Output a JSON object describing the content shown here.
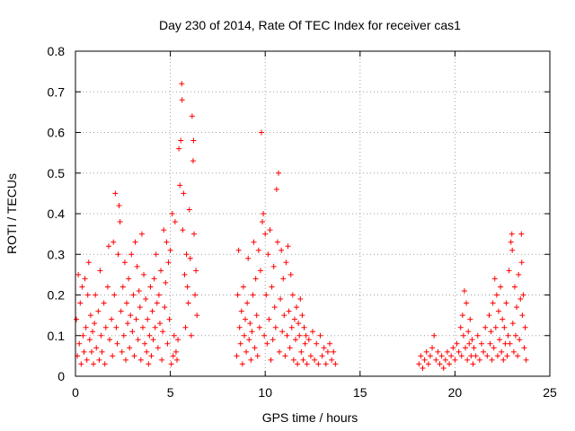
{
  "chart_data": {
    "type": "scatter",
    "title": "Day 230 of 2014, Rate Of TEC Index for receiver cas1",
    "xlabel": "GPS time / hours",
    "ylabel": "ROTI / TECUs",
    "xlim": [
      0,
      25
    ],
    "ylim": [
      0,
      0.8
    ],
    "xticks": [
      "0",
      "5",
      "10",
      "15",
      "20",
      "25"
    ],
    "yticks": [
      "0",
      "0.1",
      "0.2",
      "0.3",
      "0.4",
      "0.5",
      "0.6",
      "0.7",
      "0.8"
    ],
    "grid": true,
    "marker": "+",
    "color": "#ff0000",
    "series": [
      {
        "name": "ROTI",
        "points": [
          [
            0.05,
            0.14
          ],
          [
            0.1,
            0.05
          ],
          [
            0.15,
            0.25
          ],
          [
            0.2,
            0.08
          ],
          [
            0.25,
            0.18
          ],
          [
            0.3,
            0.03
          ],
          [
            0.35,
            0.22
          ],
          [
            0.4,
            0.1
          ],
          [
            0.45,
            0.06
          ],
          [
            0.5,
            0.24
          ],
          [
            0.55,
            0.12
          ],
          [
            0.6,
            0.04
          ],
          [
            0.65,
            0.2
          ],
          [
            0.7,
            0.28
          ],
          [
            0.75,
            0.09
          ],
          [
            0.8,
            0.15
          ],
          [
            0.85,
            0.06
          ],
          [
            0.9,
            0.11
          ],
          [
            0.95,
            0.03
          ],
          [
            1.0,
            0.13
          ],
          [
            1.05,
            0.2
          ],
          [
            1.1,
            0.07
          ],
          [
            1.2,
            0.16
          ],
          [
            1.25,
            0.04
          ],
          [
            1.3,
            0.26
          ],
          [
            1.35,
            0.1
          ],
          [
            1.4,
            0.06
          ],
          [
            1.5,
            0.18
          ],
          [
            1.55,
            0.03
          ],
          [
            1.6,
            0.12
          ],
          [
            1.7,
            0.22
          ],
          [
            1.75,
            0.32
          ],
          [
            1.8,
            0.09
          ],
          [
            1.9,
            0.14
          ],
          [
            1.95,
            0.05
          ],
          [
            2.0,
            0.33
          ],
          [
            2.05,
            0.2
          ],
          [
            2.1,
            0.45
          ],
          [
            2.15,
            0.12
          ],
          [
            2.2,
            0.08
          ],
          [
            2.25,
            0.3
          ],
          [
            2.3,
            0.42
          ],
          [
            2.35,
            0.38
          ],
          [
            2.4,
            0.16
          ],
          [
            2.45,
            0.06
          ],
          [
            2.5,
            0.22
          ],
          [
            2.55,
            0.1
          ],
          [
            2.6,
            0.28
          ],
          [
            2.65,
            0.04
          ],
          [
            2.7,
            0.18
          ],
          [
            2.75,
            0.13
          ],
          [
            2.8,
            0.24
          ],
          [
            2.85,
            0.07
          ],
          [
            2.9,
            0.15
          ],
          [
            2.95,
            0.3
          ],
          [
            3.0,
            0.11
          ],
          [
            3.05,
            0.2
          ],
          [
            3.1,
            0.05
          ],
          [
            3.15,
            0.33
          ],
          [
            3.2,
            0.14
          ],
          [
            3.25,
            0.27
          ],
          [
            3.3,
            0.09
          ],
          [
            3.35,
            0.21
          ],
          [
            3.4,
            0.17
          ],
          [
            3.45,
            0.04
          ],
          [
            3.5,
            0.35
          ],
          [
            3.55,
            0.12
          ],
          [
            3.6,
            0.25
          ],
          [
            3.65,
            0.08
          ],
          [
            3.7,
            0.19
          ],
          [
            3.75,
            0.06
          ],
          [
            3.8,
            0.14
          ],
          [
            3.85,
            0.03
          ],
          [
            3.9,
            0.1
          ],
          [
            3.95,
            0.22
          ],
          [
            4.0,
            0.05
          ],
          [
            4.05,
            0.16
          ],
          [
            4.1,
            0.09
          ],
          [
            4.15,
            0.24
          ],
          [
            4.2,
            0.12
          ],
          [
            4.25,
            0.3
          ],
          [
            4.3,
            0.18
          ],
          [
            4.35,
            0.07
          ],
          [
            4.4,
            0.2
          ],
          [
            4.45,
            0.13
          ],
          [
            4.5,
            0.26
          ],
          [
            4.55,
            0.04
          ],
          [
            4.6,
            0.11
          ],
          [
            4.65,
            0.36
          ],
          [
            4.7,
            0.17
          ],
          [
            4.75,
            0.23
          ],
          [
            4.8,
            0.33
          ],
          [
            4.85,
            0.08
          ],
          [
            4.9,
            0.28
          ],
          [
            4.95,
            0.14
          ],
          [
            5.0,
            0.31
          ],
          [
            5.05,
            0.03
          ],
          [
            5.1,
            0.4
          ],
          [
            5.15,
            0.05
          ],
          [
            5.2,
            0.1
          ],
          [
            5.25,
            0.38
          ],
          [
            5.3,
            0.06
          ],
          [
            5.35,
            0.04
          ],
          [
            5.4,
            0.09
          ],
          [
            5.45,
            0.56
          ],
          [
            5.5,
            0.47
          ],
          [
            5.55,
            0.58
          ],
          [
            5.6,
            0.72
          ],
          [
            5.62,
            0.68
          ],
          [
            5.65,
            0.36
          ],
          [
            5.7,
            0.45
          ],
          [
            5.75,
            0.25
          ],
          [
            5.8,
            0.12
          ],
          [
            5.85,
            0.3
          ],
          [
            5.9,
            0.22
          ],
          [
            5.95,
            0.18
          ],
          [
            6.0,
            0.41
          ],
          [
            6.05,
            0.29
          ],
          [
            6.1,
            0.1
          ],
          [
            6.15,
            0.64
          ],
          [
            6.2,
            0.53
          ],
          [
            6.22,
            0.58
          ],
          [
            6.25,
            0.35
          ],
          [
            6.3,
            0.2
          ],
          [
            6.35,
            0.26
          ],
          [
            6.4,
            0.15
          ],
          [
            8.5,
            0.05
          ],
          [
            8.55,
            0.2
          ],
          [
            8.6,
            0.31
          ],
          [
            8.65,
            0.12
          ],
          [
            8.7,
            0.08
          ],
          [
            8.75,
            0.16
          ],
          [
            8.8,
            0.03
          ],
          [
            8.85,
            0.22
          ],
          [
            8.9,
            0.1
          ],
          [
            8.95,
            0.14
          ],
          [
            9.0,
            0.06
          ],
          [
            9.05,
            0.18
          ],
          [
            9.1,
            0.29
          ],
          [
            9.15,
            0.09
          ],
          [
            9.2,
            0.13
          ],
          [
            9.25,
            0.04
          ],
          [
            9.3,
            0.11
          ],
          [
            9.35,
            0.2
          ],
          [
            9.4,
            0.33
          ],
          [
            9.45,
            0.07
          ],
          [
            9.5,
            0.24
          ],
          [
            9.55,
            0.15
          ],
          [
            9.6,
            0.05
          ],
          [
            9.65,
            0.31
          ],
          [
            9.7,
            0.12
          ],
          [
            9.75,
            0.26
          ],
          [
            9.8,
            0.6
          ],
          [
            9.85,
            0.38
          ],
          [
            9.9,
            0.4
          ],
          [
            9.95,
            0.1
          ],
          [
            10.0,
            0.35
          ],
          [
            10.05,
            0.2
          ],
          [
            10.1,
            0.08
          ],
          [
            10.15,
            0.3
          ],
          [
            10.2,
            0.14
          ],
          [
            10.25,
            0.36
          ],
          [
            10.3,
            0.04
          ],
          [
            10.35,
            0.22
          ],
          [
            10.4,
            0.09
          ],
          [
            10.45,
            0.27
          ],
          [
            10.5,
            0.17
          ],
          [
            10.55,
            0.12
          ],
          [
            10.6,
            0.46
          ],
          [
            10.65,
            0.33
          ],
          [
            10.7,
            0.5
          ],
          [
            10.75,
            0.06
          ],
          [
            10.8,
            0.19
          ],
          [
            10.85,
            0.31
          ],
          [
            10.9,
            0.11
          ],
          [
            10.95,
            0.24
          ],
          [
            11.0,
            0.15
          ],
          [
            11.05,
            0.05
          ],
          [
            11.1,
            0.28
          ],
          [
            11.15,
            0.1
          ],
          [
            11.2,
            0.32
          ],
          [
            11.25,
            0.16
          ],
          [
            11.3,
            0.07
          ],
          [
            11.35,
            0.25
          ],
          [
            11.4,
            0.12
          ],
          [
            11.45,
            0.2
          ],
          [
            11.5,
            0.04
          ],
          [
            11.55,
            0.14
          ],
          [
            11.6,
            0.09
          ],
          [
            11.65,
            0.17
          ],
          [
            11.7,
            0.03
          ],
          [
            11.75,
            0.13
          ],
          [
            11.8,
            0.1
          ],
          [
            11.85,
            0.19
          ],
          [
            11.9,
            0.06
          ],
          [
            11.95,
            0.15
          ],
          [
            12.0,
            0.04
          ],
          [
            12.05,
            0.12
          ],
          [
            12.1,
            0.08
          ],
          [
            12.15,
            0.1
          ],
          [
            12.2,
            0.03
          ],
          [
            12.3,
            0.09
          ],
          [
            12.4,
            0.05
          ],
          [
            12.5,
            0.11
          ],
          [
            12.6,
            0.04
          ],
          [
            12.7,
            0.08
          ],
          [
            12.8,
            0.03
          ],
          [
            12.9,
            0.1
          ],
          [
            13.0,
            0.05
          ],
          [
            13.1,
            0.07
          ],
          [
            13.2,
            0.03
          ],
          [
            13.3,
            0.06
          ],
          [
            13.4,
            0.08
          ],
          [
            13.5,
            0.04
          ],
          [
            13.6,
            0.06
          ],
          [
            13.7,
            0.03
          ],
          [
            18.1,
            0.03
          ],
          [
            18.2,
            0.05
          ],
          [
            18.3,
            0.02
          ],
          [
            18.4,
            0.04
          ],
          [
            18.5,
            0.06
          ],
          [
            18.6,
            0.03
          ],
          [
            18.7,
            0.05
          ],
          [
            18.8,
            0.07
          ],
          [
            18.9,
            0.1
          ],
          [
            19.0,
            0.04
          ],
          [
            19.1,
            0.06
          ],
          [
            19.2,
            0.03
          ],
          [
            19.3,
            0.05
          ],
          [
            19.4,
            0.02
          ],
          [
            19.5,
            0.04
          ],
          [
            19.6,
            0.06
          ],
          [
            19.7,
            0.03
          ],
          [
            19.8,
            0.05
          ],
          [
            19.9,
            0.07
          ],
          [
            20.0,
            0.04
          ],
          [
            20.1,
            0.08
          ],
          [
            20.2,
            0.06
          ],
          [
            20.3,
            0.12
          ],
          [
            20.35,
            0.05
          ],
          [
            20.4,
            0.15
          ],
          [
            20.45,
            0.1
          ],
          [
            20.5,
            0.21
          ],
          [
            20.55,
            0.07
          ],
          [
            20.6,
            0.18
          ],
          [
            20.65,
            0.04
          ],
          [
            20.7,
            0.11
          ],
          [
            20.75,
            0.08
          ],
          [
            20.8,
            0.14
          ],
          [
            20.85,
            0.05
          ],
          [
            20.9,
            0.09
          ],
          [
            20.95,
            0.03
          ],
          [
            21.0,
            0.07
          ],
          [
            21.1,
            0.05
          ],
          [
            21.2,
            0.1
          ],
          [
            21.3,
            0.04
          ],
          [
            21.4,
            0.08
          ],
          [
            21.5,
            0.06
          ],
          [
            21.6,
            0.12
          ],
          [
            21.7,
            0.05
          ],
          [
            21.8,
            0.15
          ],
          [
            21.85,
            0.08
          ],
          [
            21.9,
            0.11
          ],
          [
            21.95,
            0.04
          ],
          [
            22.0,
            0.18
          ],
          [
            22.05,
            0.07
          ],
          [
            22.1,
            0.24
          ],
          [
            22.15,
            0.12
          ],
          [
            22.2,
            0.2
          ],
          [
            22.25,
            0.05
          ],
          [
            22.3,
            0.16
          ],
          [
            22.35,
            0.09
          ],
          [
            22.4,
            0.22
          ],
          [
            22.45,
            0.06
          ],
          [
            22.5,
            0.14
          ],
          [
            22.55,
            0.04
          ],
          [
            22.6,
            0.12
          ],
          [
            22.65,
            0.08
          ],
          [
            22.7,
            0.18
          ],
          [
            22.75,
            0.05
          ],
          [
            22.8,
            0.1
          ],
          [
            22.85,
            0.26
          ],
          [
            22.9,
            0.08
          ],
          [
            22.95,
            0.33
          ],
          [
            23.0,
            0.35
          ],
          [
            23.02,
            0.31
          ],
          [
            23.05,
            0.13
          ],
          [
            23.1,
            0.06
          ],
          [
            23.15,
            0.22
          ],
          [
            23.2,
            0.1
          ],
          [
            23.25,
            0.17
          ],
          [
            23.3,
            0.05
          ],
          [
            23.35,
            0.25
          ],
          [
            23.4,
            0.09
          ],
          [
            23.45,
            0.19
          ],
          [
            23.5,
            0.35
          ],
          [
            23.52,
            0.28
          ],
          [
            23.55,
            0.15
          ],
          [
            23.6,
            0.2
          ],
          [
            23.65,
            0.07
          ],
          [
            23.7,
            0.12
          ],
          [
            23.75,
            0.04
          ]
        ]
      }
    ]
  }
}
